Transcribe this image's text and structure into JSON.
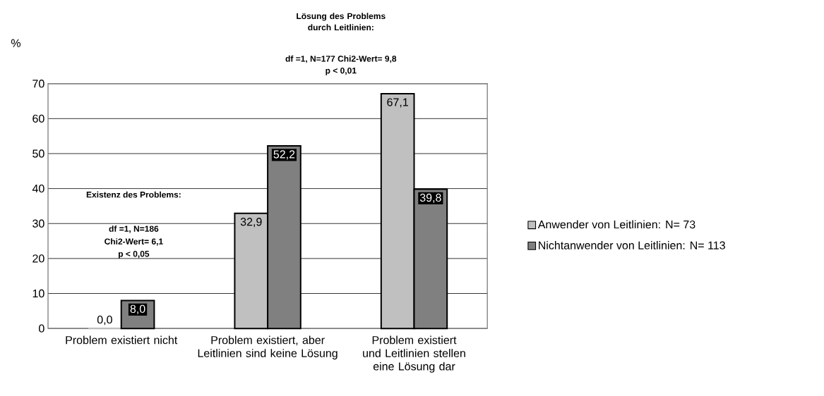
{
  "chart_data": {
    "type": "bar",
    "ylabel": "%",
    "categories": [
      "Problem existiert nicht",
      "Problem existiert, aber Leitlinien sind keine Lösung",
      "Problem existiert und Leitlinien stellen eine Lösung dar"
    ],
    "series": [
      {
        "name": "Anwender von Leitlinien: N= 73",
        "color": "#c0c0c0",
        "values": [
          0.0,
          32.9,
          67.1
        ],
        "value_labels": [
          "0,0",
          "32,9",
          "67,1"
        ]
      },
      {
        "name": "Nichtanwender von Leitlinien: N= 113",
        "color": "#808080",
        "values": [
          8.0,
          52.2,
          39.8
        ],
        "value_labels": [
          "8,0",
          "52,2",
          "39,8"
        ]
      }
    ],
    "ylim": [
      0,
      70
    ],
    "yticks": [
      0,
      10,
      20,
      30,
      40,
      50,
      60,
      70
    ],
    "grid": "y",
    "legend": "right",
    "annotations": [
      "Lösung des Problems durch Leitlinien:",
      "df =1, N=177   Chi2-Wert= 9,8",
      "p < 0,01",
      "Existenz des Problems:",
      "df =1, N=186",
      "Chi2-Wert= 6,1",
      "p < 0,05"
    ]
  }
}
